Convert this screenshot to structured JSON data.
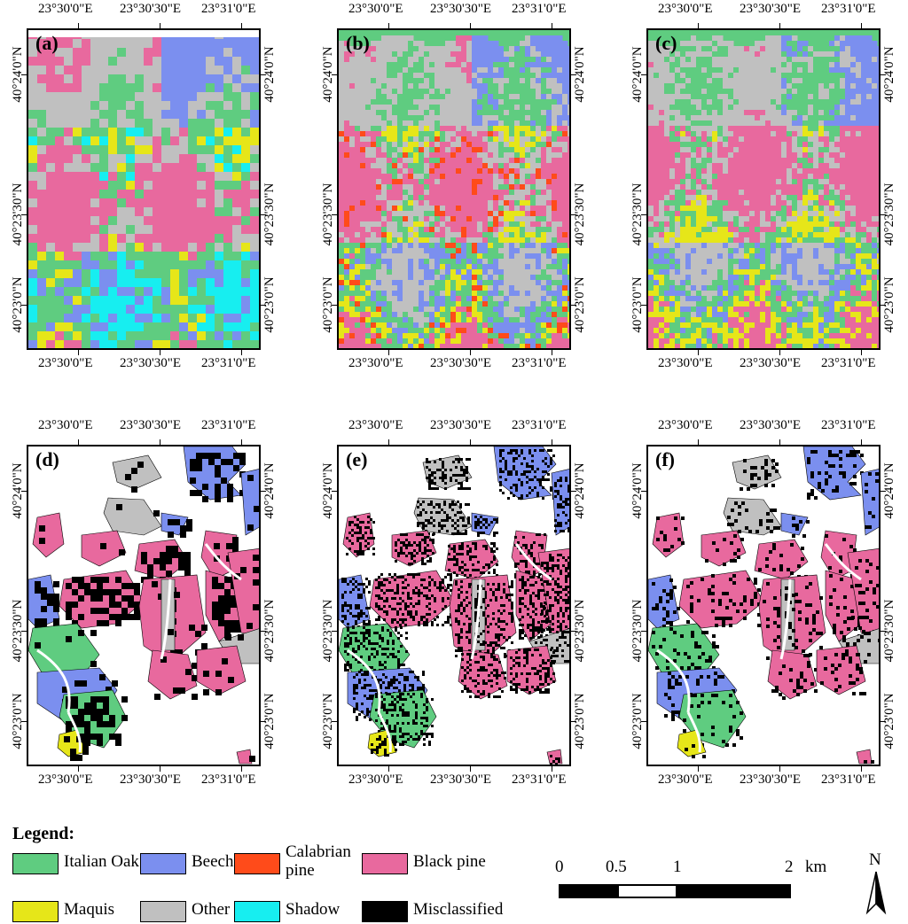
{
  "colors": {
    "italian_oak": "#5fcc80",
    "beech": "#7b8fef",
    "calabrian_pine": "#ff4b1a",
    "black_pine": "#e8699e",
    "maquis": "#e6e619",
    "other": "#c0c0c0",
    "shadow": "#17eef0",
    "misclassified": "#000000"
  },
  "panels": [
    {
      "label": "(a)",
      "kind": "full"
    },
    {
      "label": "(b)",
      "kind": "full"
    },
    {
      "label": "(c)",
      "kind": "full"
    },
    {
      "label": "(d)",
      "kind": "reference"
    },
    {
      "label": "(e)",
      "kind": "reference"
    },
    {
      "label": "(f)",
      "kind": "reference"
    }
  ],
  "axes": {
    "lon_ticks": [
      "23°30'0\"E",
      "23°30'30\"E",
      "23°31'0\"E"
    ],
    "lat_ticks": [
      "40°24'0\"N",
      "40°23'30\"N",
      "40°23'0\"N"
    ]
  },
  "legend": {
    "title": "Legend:",
    "items": [
      {
        "label": "Italian Oak",
        "color_key": "italian_oak"
      },
      {
        "label": "Beech",
        "color_key": "beech"
      },
      {
        "label": "Calabrian pine",
        "color_key": "calabrian_pine"
      },
      {
        "label": "Black pine",
        "color_key": "black_pine"
      },
      {
        "label": "Maquis",
        "color_key": "maquis"
      },
      {
        "label": "Other",
        "color_key": "other"
      },
      {
        "label": "Shadow",
        "color_key": "shadow"
      },
      {
        "label": "Misclassified",
        "color_key": "misclassified"
      }
    ]
  },
  "scale_bar": {
    "labels": [
      "0",
      "0.5",
      "1",
      "2"
    ],
    "unit": "km"
  },
  "north_arrow": {
    "label": "N",
    "icon": "north-arrow-icon"
  }
}
